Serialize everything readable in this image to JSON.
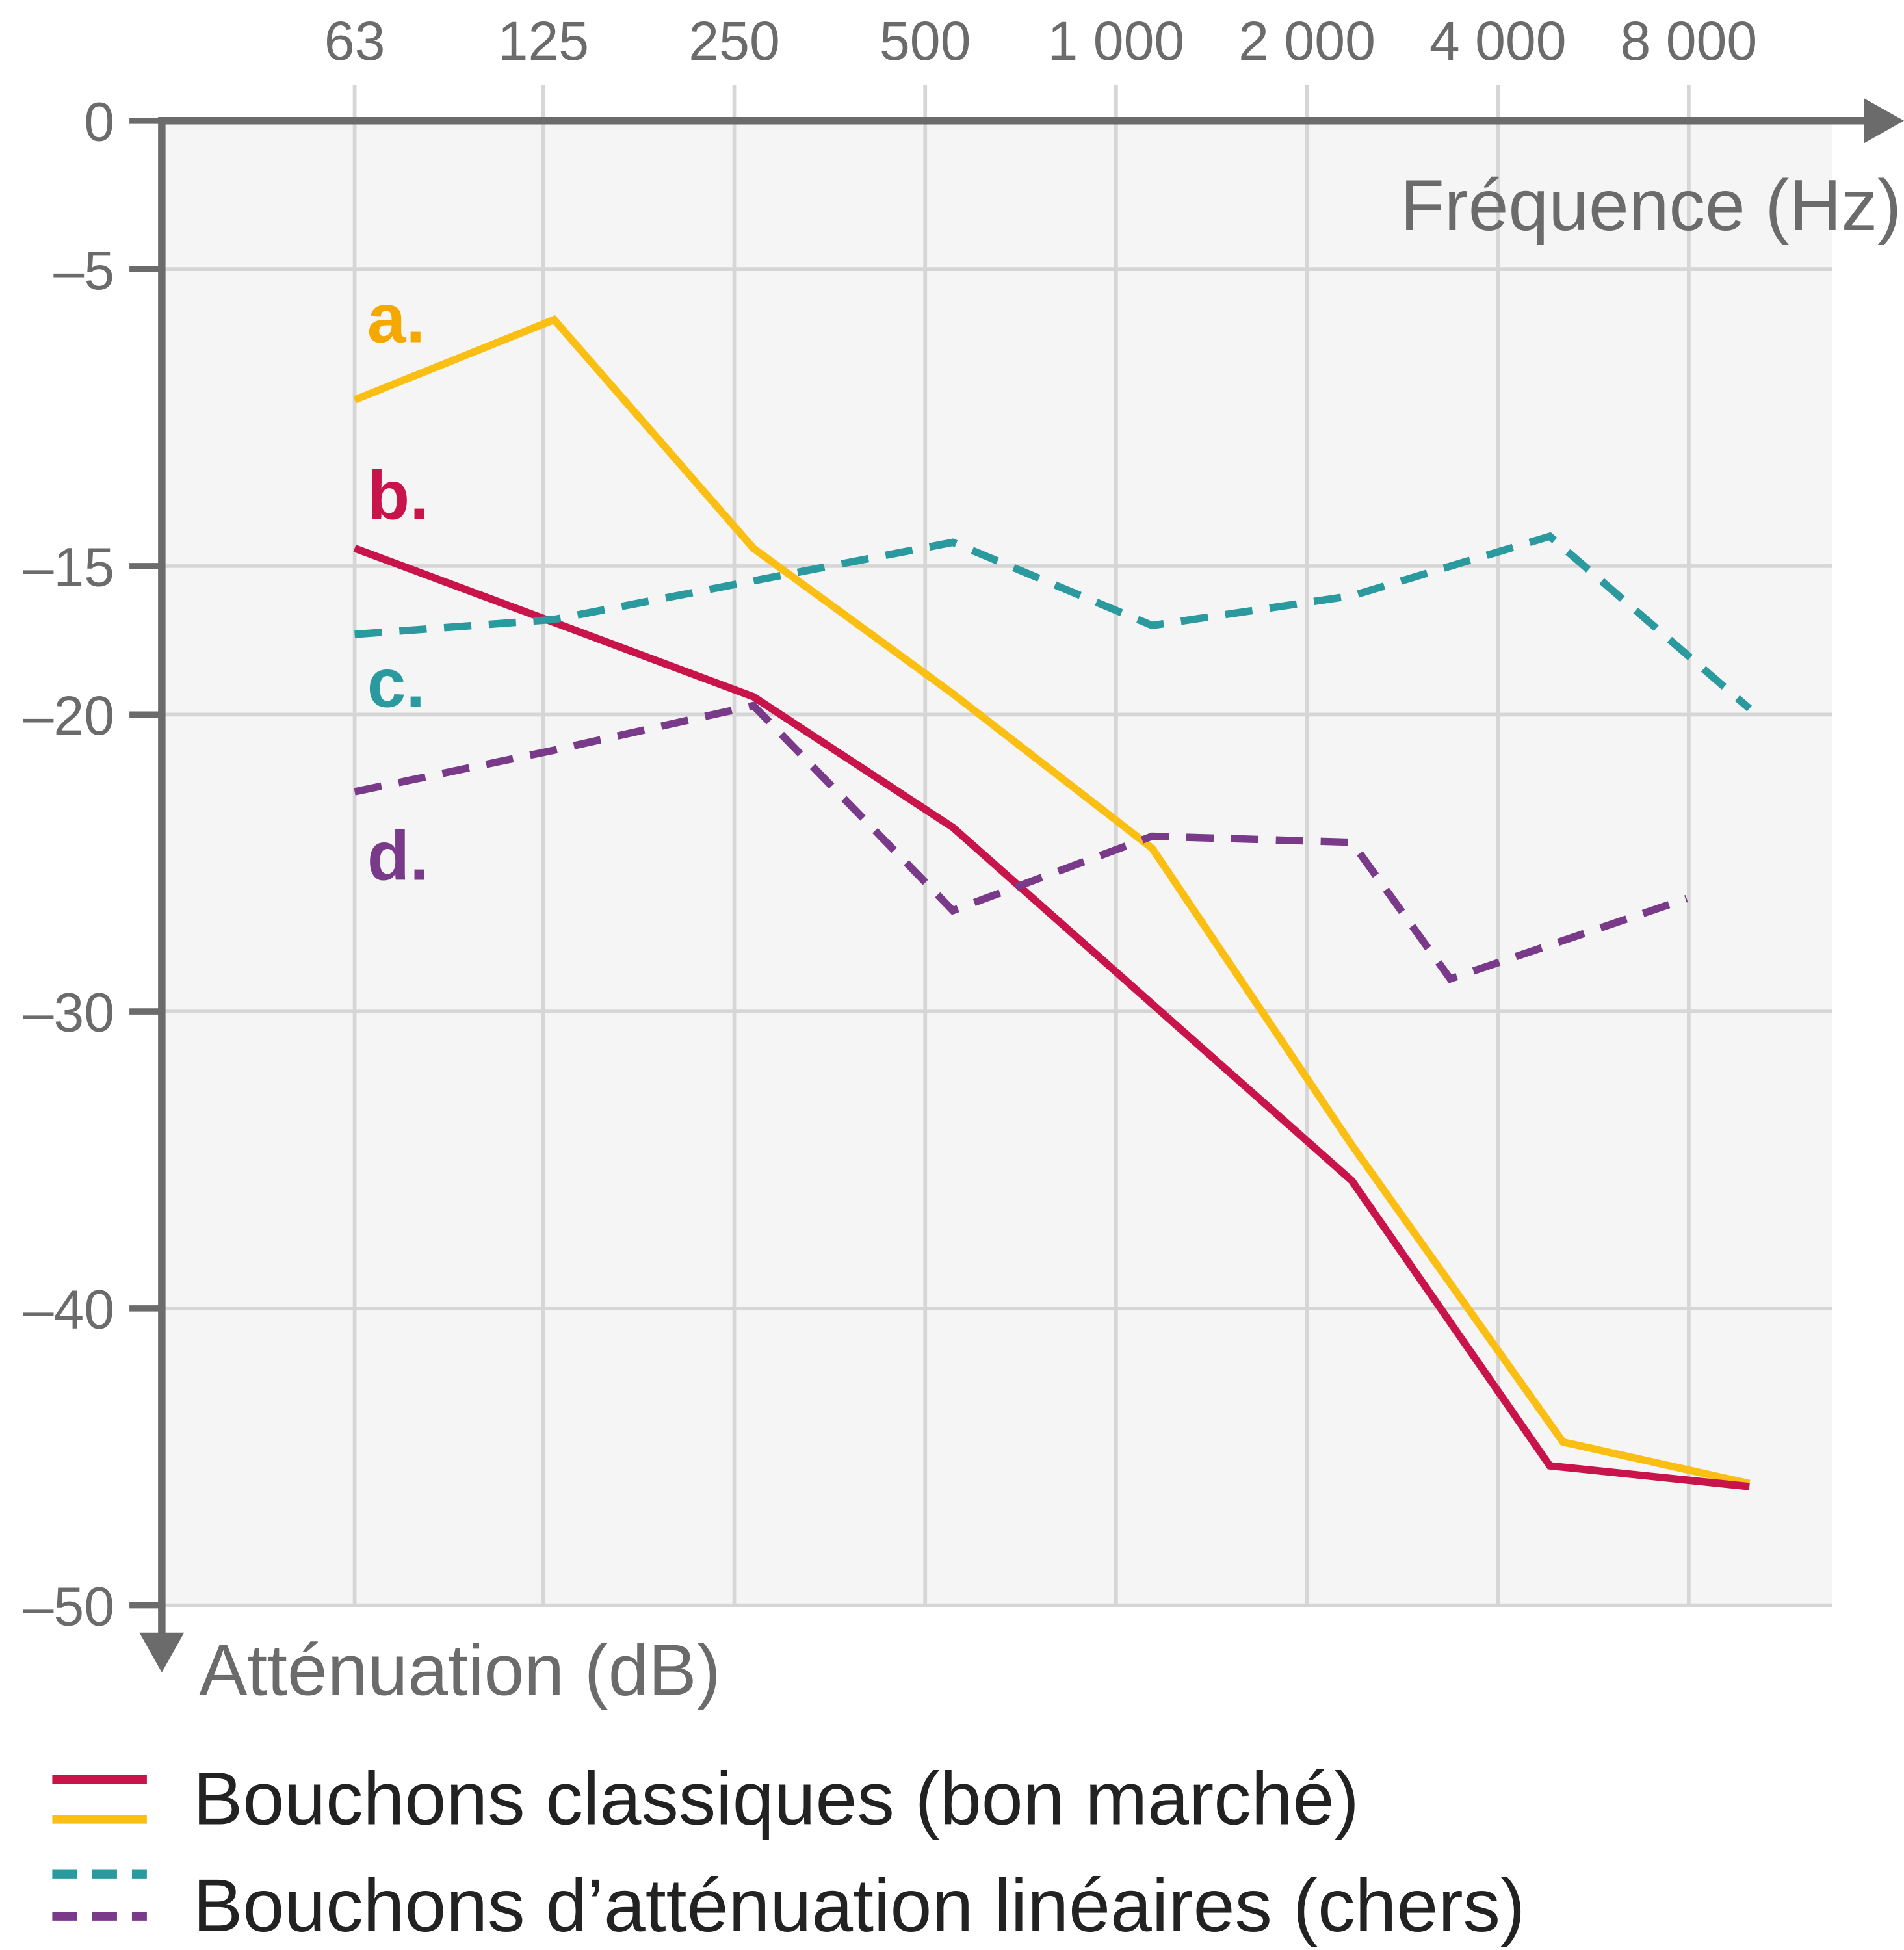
{
  "chart_data": {
    "type": "line",
    "title": "",
    "xlabel": "Fréquence (Hz)",
    "ylabel": "Atténuation (dB)",
    "x_scale": "log2",
    "x_ticks": [
      63,
      125,
      250,
      500,
      1000,
      2000,
      4000,
      8000
    ],
    "x_tick_labels": [
      "63",
      "125",
      "250",
      "500",
      "1 000",
      "2 000",
      "4 000",
      "8 000"
    ],
    "x_axis_position": "top",
    "y_ticks": [
      0,
      -5,
      -15,
      -20,
      -30,
      -40,
      -50
    ],
    "y_tick_labels": [
      "0",
      "–5",
      "–15",
      "–20",
      "–30",
      "–40",
      "–50"
    ],
    "ylim": [
      -50,
      0
    ],
    "grid": true,
    "legend_position": "bottom-left",
    "series": [
      {
        "label": "a.",
        "style": "solid",
        "color": "#fbbf14",
        "label_color": "#f5a800",
        "points": [
          [
            63,
            -9.4
          ],
          [
            130,
            -6.7
          ],
          [
            268,
            -14.4
          ],
          [
            553,
            -19.3
          ],
          [
            1140,
            -24.5
          ],
          [
            2354,
            -34.5
          ],
          [
            5067,
            -44.5
          ],
          [
            9970,
            -45.9
          ]
        ]
      },
      {
        "label": "b.",
        "style": "solid",
        "color": "#c8144a",
        "label_color": "#c8144a",
        "points": [
          [
            63,
            -14.4
          ],
          [
            130,
            -16.9
          ],
          [
            268,
            -19.4
          ],
          [
            553,
            -23.8
          ],
          [
            2354,
            -35.7
          ],
          [
            4830,
            -45.3
          ],
          [
            9970,
            -46.0
          ]
        ]
      },
      {
        "label": "c.",
        "style": "dashed",
        "color": "#2a9a9f",
        "label_color": "#2a9a9f",
        "points": [
          [
            63,
            -17.3
          ],
          [
            130,
            -16.8
          ],
          [
            268,
            -15.5
          ],
          [
            553,
            -14.2
          ],
          [
            1140,
            -17.0
          ],
          [
            2354,
            -16.0
          ],
          [
            4830,
            -14.0
          ],
          [
            9970,
            -19.8
          ]
        ]
      },
      {
        "label": "d.",
        "style": "dashed",
        "color": "#7a3a8a",
        "label_color": "#7a3a8a",
        "points": [
          [
            63,
            -22.6
          ],
          [
            130,
            -21.2
          ],
          [
            268,
            -19.7
          ],
          [
            553,
            -26.6
          ],
          [
            1140,
            -24.1
          ],
          [
            2354,
            -24.3
          ],
          [
            3365,
            -28.9
          ],
          [
            7940,
            -26.2
          ]
        ]
      }
    ],
    "legend": [
      {
        "text": "Bouchons classiques (bon marché)",
        "colors": [
          "#c8144a",
          "#fbbf14"
        ],
        "style": "solid"
      },
      {
        "text": "Bouchons d’atténuation linéaires (chers)",
        "colors": [
          "#2a9a9f",
          "#7a3a8a"
        ],
        "style": "dashed"
      }
    ]
  }
}
